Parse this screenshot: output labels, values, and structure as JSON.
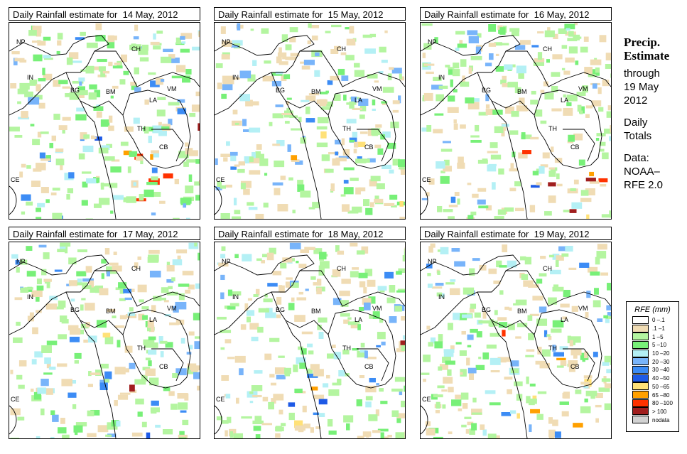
{
  "panels": [
    {
      "title": "Daily Rainfall estimate for  14 May, 2012",
      "date": "14 May, 2012"
    },
    {
      "title": "Daily Rainfall estimate for  15 May, 2012",
      "date": "15 May, 2012"
    },
    {
      "title": "Daily Rainfall estimate for  16 May, 2012",
      "date": "16 May, 2012"
    },
    {
      "title": "Daily Rainfall estimate for  17 May, 2012",
      "date": "17 May, 2012"
    },
    {
      "title": "Daily Rainfall estimate for  18 May, 2012",
      "date": "18 May, 2012"
    },
    {
      "title": "Daily Rainfall estimate for  19 May, 2012",
      "date": "19 May, 2012"
    }
  ],
  "country_labels": [
    "NP",
    "CH",
    "IN",
    "BG",
    "BM",
    "VM",
    "LA",
    "TH",
    "CB",
    "CE"
  ],
  "sidebar": {
    "heading1": "Precip.",
    "heading2": "Estimate",
    "line1": "through",
    "line2": "19 May",
    "line3": "2012",
    "line4": "Daily",
    "line5": "Totals",
    "line6": "Data:",
    "line7": "NOAA–",
    "line8": "RFE 2.0"
  },
  "legend": {
    "title": "RFE (mm)",
    "items": [
      {
        "label": "0 –.1",
        "color": "#ffffff"
      },
      {
        "label": ".1 –1",
        "color": "#f0dcb4"
      },
      {
        "label": "1 –5",
        "color": "#b4f5a0"
      },
      {
        "label": "5 –10",
        "color": "#78f078"
      },
      {
        "label": "10 –20",
        "color": "#b4f0f5"
      },
      {
        "label": "20 –30",
        "color": "#78b4fa"
      },
      {
        "label": "30 –40",
        "color": "#3c8cf5"
      },
      {
        "label": "40 –50",
        "color": "#1e5ae6"
      },
      {
        "label": "50 –65",
        "color": "#ffe178"
      },
      {
        "label": "65 –80",
        "color": "#ffa000"
      },
      {
        "label": "80 –100",
        "color": "#ff3200"
      },
      {
        "label": "> 100",
        "color": "#a01e1e"
      },
      {
        "label": "nodata",
        "color": "#d2d2d2"
      }
    ]
  }
}
